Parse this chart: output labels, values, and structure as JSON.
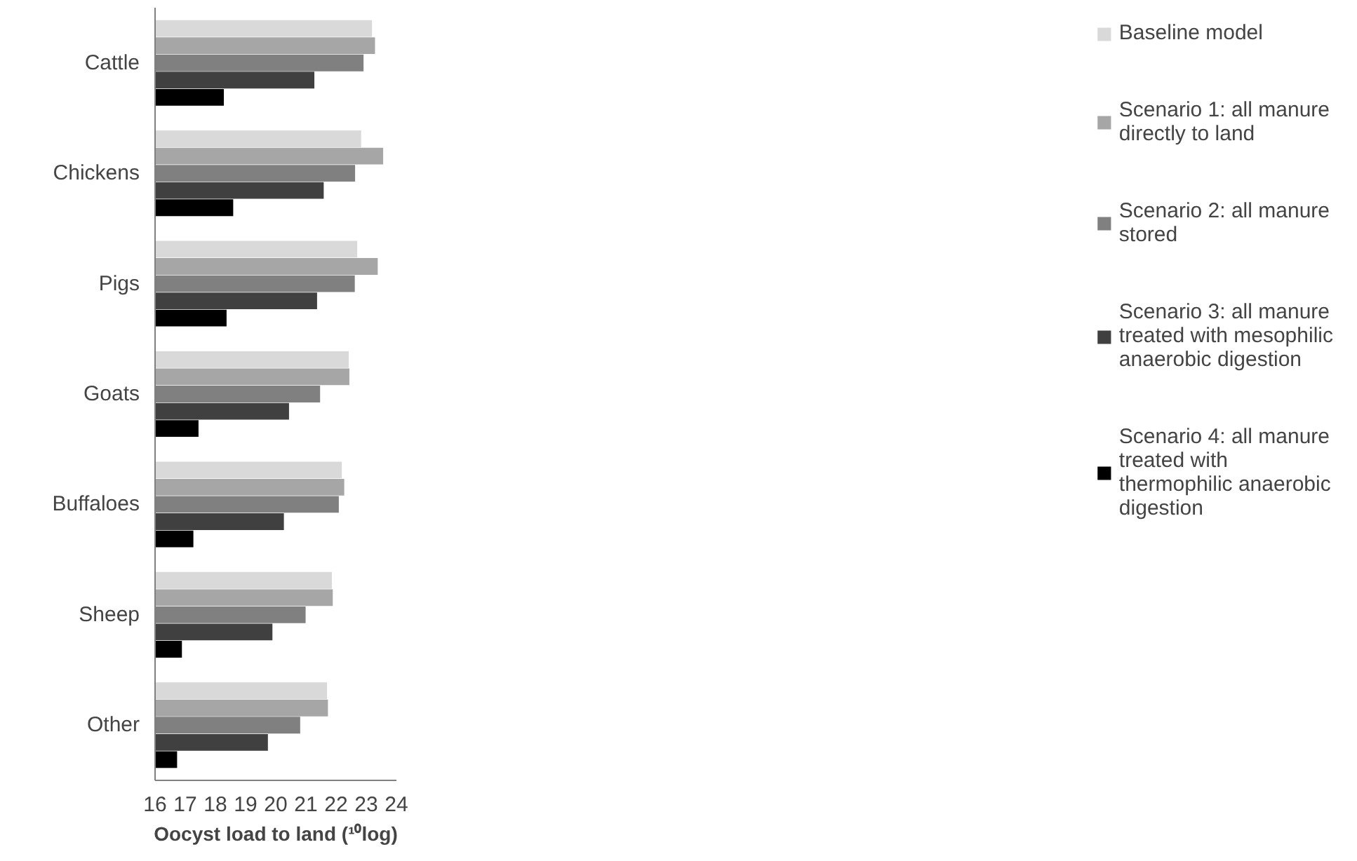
{
  "chart_data": {
    "type": "bar",
    "orientation": "horizontal",
    "xlabel": "Oocyst load to land (¹⁰log)",
    "categories": [
      "Cattle",
      "Chickens",
      "Pigs",
      "Goats",
      "Buffaloes",
      "Sheep",
      "Other"
    ],
    "xlim": [
      16,
      24
    ],
    "xticks": [
      16,
      17,
      18,
      19,
      20,
      21,
      22,
      23,
      24
    ],
    "grid": false,
    "legend": "right",
    "series": [
      {
        "name": "Baseline model",
        "color": "#d9d9d9",
        "values": [
          23.19,
          22.83,
          22.7,
          22.42,
          22.19,
          21.86,
          21.7
        ]
      },
      {
        "name": "Scenario 1: all manure directly to land",
        "color": "#a6a6a6",
        "values": [
          23.29,
          23.56,
          23.38,
          22.44,
          22.27,
          21.89,
          21.73
        ]
      },
      {
        "name": "Scenario 2: all manure stored",
        "color": "#808080",
        "values": [
          22.91,
          22.63,
          22.62,
          21.47,
          22.09,
          20.99,
          20.81
        ]
      },
      {
        "name": "Scenario 3: all manure treated with mesophilic anaerobic digestion",
        "color": "#404040",
        "values": [
          21.28,
          21.59,
          21.37,
          20.44,
          20.27,
          19.89,
          19.74
        ]
      },
      {
        "name": "Scenario 4: all manure treated with thermophilic anaerobic digestion",
        "color": "#000000",
        "values": [
          18.28,
          18.59,
          18.37,
          17.44,
          17.27,
          16.89,
          16.73
        ]
      }
    ]
  }
}
